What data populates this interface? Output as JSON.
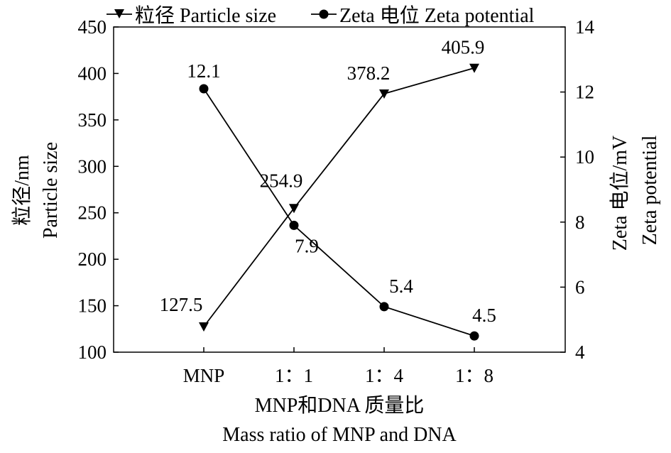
{
  "chart_data": {
    "type": "line",
    "categories": [
      "MNP",
      "1：1",
      "1：4",
      "1：8"
    ],
    "xlabel": [
      "MNP和DNA 质量比",
      "Mass ratio of MNP and DNA"
    ],
    "ylabel_left": [
      "粒径/nm",
      "Particle size"
    ],
    "ylabel_right": [
      "Zeta 电位/mV",
      "Zeta potential"
    ],
    "ylim_left": [
      100,
      450
    ],
    "yticks_left": [
      100,
      150,
      200,
      250,
      300,
      350,
      400,
      450
    ],
    "ylim_right": [
      4,
      14
    ],
    "yticks_right": [
      4,
      6,
      8,
      10,
      12,
      14
    ],
    "grid": false,
    "legend_position": "top",
    "series": [
      {
        "name": "粒径 Particle size",
        "axis": "left",
        "marker": "triangle-down",
        "values": [
          127.5,
          254.9,
          378.2,
          405.9
        ],
        "labels": [
          "127.5",
          "254.9",
          "378.2",
          "405.9"
        ]
      },
      {
        "name": "Zeta 电位 Zeta potential",
        "axis": "right",
        "marker": "circle",
        "values": [
          12.1,
          7.9,
          5.4,
          4.5
        ],
        "labels": [
          "12.1",
          "7.9",
          "5.4",
          "4.5"
        ]
      }
    ],
    "colors": {
      "line": "#000000",
      "background": "#ffffff"
    }
  }
}
